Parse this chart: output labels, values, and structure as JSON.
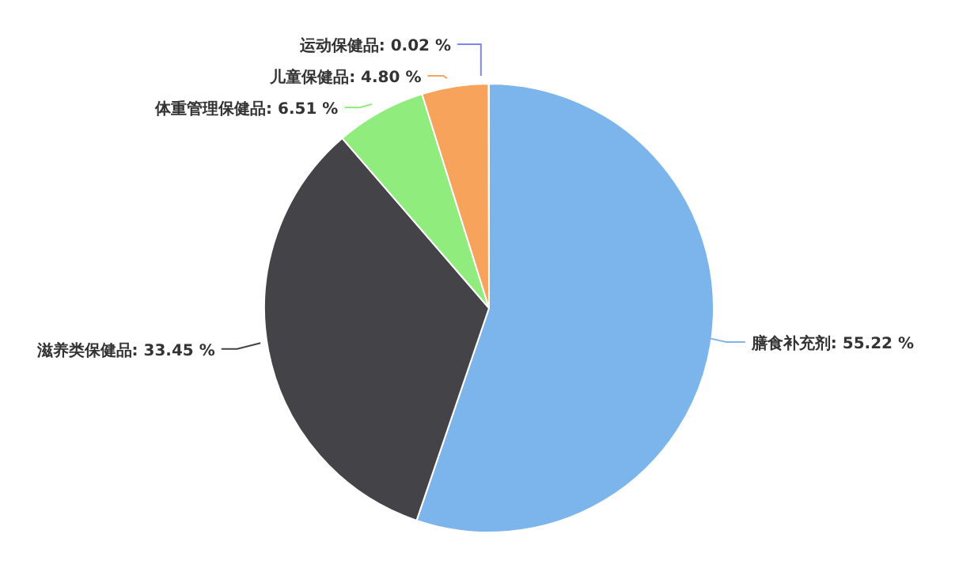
{
  "chart_data": {
    "type": "pie",
    "categories": [
      "膳食补充剂",
      "滋养类保健品",
      "体重管理保健品",
      "儿童保健品",
      "运动保健品"
    ],
    "values": [
      55.22,
      33.45,
      6.51,
      4.8,
      0.02
    ],
    "value_labels": [
      "55.22 %",
      "33.45 %",
      "6.51 %",
      "4.80 %",
      "0.02 %"
    ],
    "colors": [
      "#7cb5ec",
      "#434348",
      "#90ed7d",
      "#f7a35c",
      "#8085e9"
    ],
    "legend": false
  }
}
